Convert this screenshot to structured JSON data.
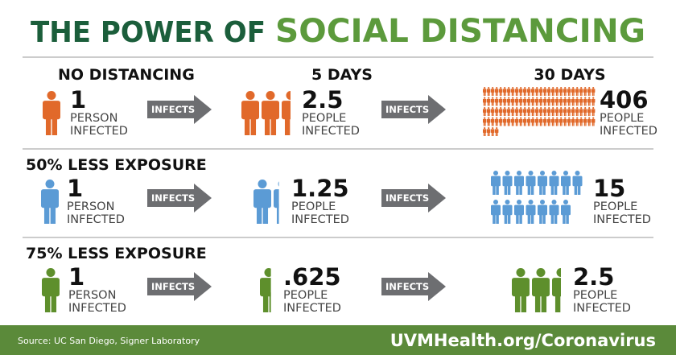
{
  "header": {
    "title_part1": "THE POWER OF",
    "title_part2": "SOCIAL DISTANCING"
  },
  "columns": [
    "5 DAYS",
    "30 DAYS"
  ],
  "arrow_label": "INFECTS",
  "rows": [
    {
      "label": "NO DISTANCING",
      "cells": [
        {
          "number": "1",
          "unit": [
            "PERSON",
            "INFECTED"
          ]
        },
        {
          "number": "2.5",
          "unit": [
            "PEOPLE",
            "INFECTED"
          ]
        },
        {
          "number": "406",
          "unit": [
            "PEOPLE",
            "INFECTED"
          ]
        }
      ]
    },
    {
      "label": "50% LESS EXPOSURE",
      "cells": [
        {
          "number": "1",
          "unit": [
            "PERSON",
            "INFECTED"
          ]
        },
        {
          "number": "1.25",
          "unit": [
            "PEOPLE",
            "INFECTED"
          ]
        },
        {
          "number": "15",
          "unit": [
            "PEOPLE",
            "INFECTED"
          ]
        }
      ]
    },
    {
      "label": "75% LESS EXPOSURE",
      "cells": [
        {
          "number": "1",
          "unit": [
            "PERSON",
            "INFECTED"
          ]
        },
        {
          "number": ".625",
          "unit": [
            "PEOPLE",
            "INFECTED"
          ]
        },
        {
          "number": "2.5",
          "unit": [
            "PEOPLE",
            "INFECTED"
          ]
        }
      ]
    }
  ],
  "footer": {
    "source": "Source: UC San Diego, Signer Laboratory",
    "url": "UVMHealth.org/Coronavirus"
  }
}
